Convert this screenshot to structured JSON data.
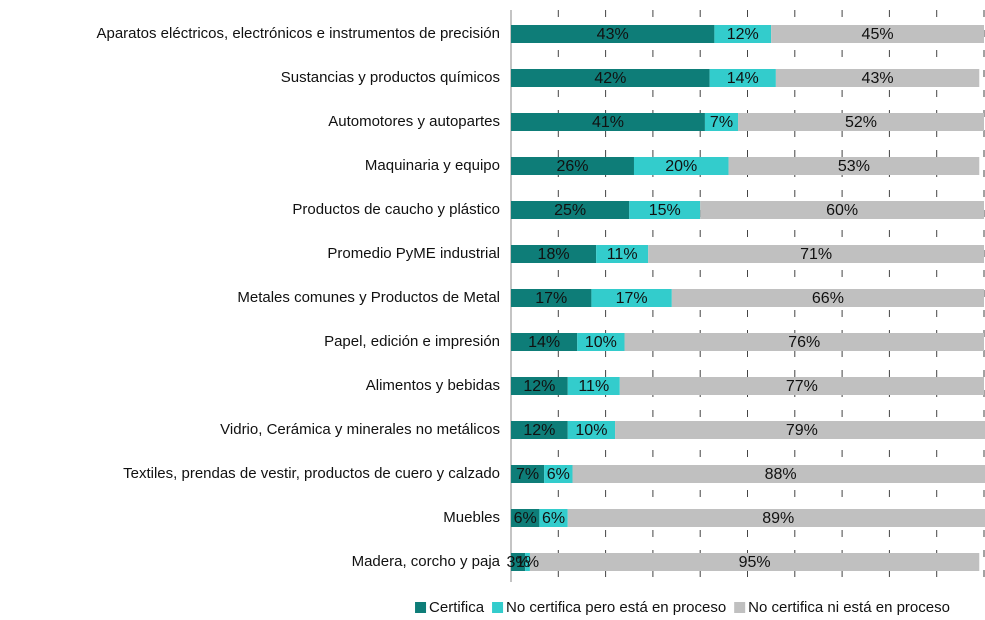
{
  "chart_data": {
    "type": "stacked_barh",
    "categories": [
      "Aparatos eléctricos, electrónicos e instrumentos de precisión",
      "Sustancias y productos químicos",
      "Automotores y autopartes",
      "Maquinaria y equipo",
      "Productos de caucho y plástico",
      "Promedio PyME industrial",
      "Metales comunes y Productos de Metal",
      "Papel, edición e impresión",
      "Alimentos y bebidas",
      "Vidrio, Cerámica y minerales no metálicos",
      "Textiles, prendas de vestir, productos de cuero y calzado",
      "Muebles",
      "Madera, corcho y paja"
    ],
    "series": [
      {
        "name": "Certifica",
        "color": "#0e7d78",
        "values": [
          43,
          42,
          41,
          26,
          25,
          18,
          17,
          14,
          12,
          12,
          7,
          6,
          3
        ],
        "value_labels": [
          "43%",
          "42%",
          "41%",
          "26%",
          "25%",
          "18%",
          "17%",
          "14%",
          "12%",
          "12%",
          "7%",
          "6%",
          "3%"
        ]
      },
      {
        "name": "No certifica pero está en proceso",
        "color": "#33cccc",
        "values": [
          12,
          14,
          7,
          20,
          15,
          11,
          17,
          10,
          11,
          10,
          6,
          6,
          1
        ],
        "value_labels": [
          "12%",
          "14%",
          "7%",
          "20%",
          "15%",
          "11%",
          "17%",
          "10%",
          "11%",
          "10%",
          "6%",
          "6%",
          "1%"
        ]
      },
      {
        "name": "No certifica ni está en proceso",
        "color": "#c0c0c0",
        "values": [
          45,
          43,
          52,
          53,
          60,
          71,
          66,
          76,
          77,
          79,
          88,
          89,
          95
        ],
        "value_labels": [
          "45%",
          "43%",
          "52%",
          "53%",
          "60%",
          "71%",
          "66%",
          "76%",
          "77%",
          "79%",
          "88%",
          "89%",
          "95%"
        ]
      }
    ],
    "xlim": [
      0,
      100
    ],
    "xticks": [
      0,
      10,
      20,
      30,
      40,
      50,
      60,
      70,
      80,
      90,
      100
    ],
    "grid": true
  }
}
